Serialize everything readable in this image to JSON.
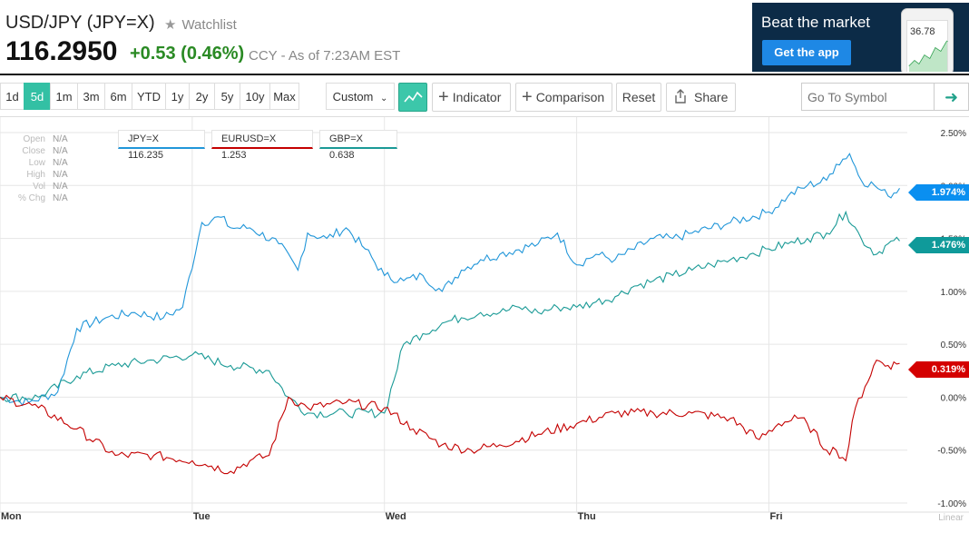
{
  "header": {
    "title": "USD/JPY (JPY=X)",
    "watchlist_label": "Watchlist",
    "price": "116.2950",
    "change": "+0.53 (0.46%)",
    "meta": "CCY - As of 7:23AM EST"
  },
  "ad": {
    "headline": "Beat the market",
    "button": "Get the app",
    "phone_value": "36.78"
  },
  "toolbar": {
    "ranges": [
      "1d",
      "5d",
      "1m",
      "3m",
      "6m",
      "YTD",
      "1y",
      "2y",
      "5y",
      "10y",
      "Max"
    ],
    "active_range": "5d",
    "custom_label": "Custom",
    "indicator_label": "Indicator",
    "comparison_label": "Comparison",
    "reset_label": "Reset",
    "share_label": "Share",
    "symbol_placeholder": "Go To Symbol"
  },
  "ohlc": [
    {
      "label": "Open",
      "value": "N/A"
    },
    {
      "label": "Close",
      "value": "N/A"
    },
    {
      "label": "Low",
      "value": "N/A"
    },
    {
      "label": "High",
      "value": "N/A"
    },
    {
      "label": "Vol",
      "value": "N/A"
    },
    {
      "label": "% Chg",
      "value": "N/A"
    }
  ],
  "legend": [
    {
      "label": "JPY=X 116.235",
      "color": "#2196d9"
    },
    {
      "label": "EURUSD=X 1.253",
      "color": "#c40000"
    },
    {
      "label": "GBP=X 0.638",
      "color": "#1a9a96"
    }
  ],
  "tags": [
    {
      "label": "1.974%",
      "color": "#0a8ff0"
    },
    {
      "label": "1.476%",
      "color": "#0f9a9a"
    },
    {
      "label": "0.319%",
      "color": "#d40000"
    }
  ],
  "chart_data": {
    "type": "line",
    "ylim": [
      -1.0,
      2.5
    ],
    "y_ticks": [
      "2.50%",
      "2.00%",
      "1.50%",
      "1.00%",
      "0.50%",
      "0.00%",
      "-0.50%",
      "-1.00%"
    ],
    "y_tick_values": [
      2.5,
      2.0,
      1.5,
      1.0,
      0.5,
      0.0,
      -0.5,
      -1.0
    ],
    "x_ticks": [
      "Mon",
      "Tue",
      "Wed",
      "Thu",
      "Fri"
    ],
    "x_tick_positions": [
      0,
      1,
      2,
      3,
      4
    ],
    "xlim": [
      0,
      4.72
    ],
    "scale_label": "Linear",
    "grid": true,
    "series": [
      {
        "name": "JPY=X",
        "color": "#2196d9",
        "x": [
          0,
          0.15,
          0.3,
          0.4,
          0.55,
          0.7,
          0.85,
          0.95,
          1.05,
          1.15,
          1.2,
          1.3,
          1.45,
          1.55,
          1.6,
          1.7,
          1.8,
          1.9,
          2.0,
          2.1,
          2.2,
          2.3,
          2.4,
          2.5,
          2.6,
          2.8,
          2.9,
          3.0,
          3.1,
          3.2,
          3.4,
          3.5,
          3.6,
          3.8,
          4.0,
          4.1,
          4.2,
          4.3,
          4.35,
          4.42,
          4.48,
          4.55,
          4.62,
          4.68
        ],
        "y": [
          0.0,
          -0.05,
          0.05,
          0.65,
          0.75,
          0.8,
          0.75,
          0.85,
          1.65,
          1.7,
          1.6,
          1.6,
          1.45,
          1.2,
          1.55,
          1.5,
          1.6,
          1.4,
          1.15,
          1.1,
          1.15,
          1.0,
          1.2,
          1.3,
          1.35,
          1.45,
          1.55,
          1.25,
          1.35,
          1.3,
          1.5,
          1.5,
          1.55,
          1.65,
          1.75,
          1.9,
          2.0,
          2.05,
          2.2,
          2.3,
          2.05,
          2.0,
          1.9,
          1.974
        ]
      },
      {
        "name": "GBP=X",
        "color": "#1a9a96",
        "x": [
          0,
          0.2,
          0.4,
          0.6,
          0.8,
          1.0,
          1.2,
          1.4,
          1.5,
          1.6,
          1.8,
          2.0,
          2.1,
          2.2,
          2.3,
          2.4,
          2.5,
          2.6,
          2.7,
          2.8,
          2.9,
          3.0,
          3.1,
          3.2,
          3.3,
          3.4,
          3.5,
          3.6,
          3.7,
          3.8,
          3.9,
          4.0,
          4.1,
          4.2,
          4.3,
          4.4,
          4.48,
          4.56,
          4.62,
          4.68
        ],
        "y": [
          0.0,
          0.0,
          0.2,
          0.3,
          0.35,
          0.4,
          0.3,
          0.25,
          0.0,
          -0.15,
          -0.15,
          -0.15,
          0.5,
          0.6,
          0.7,
          0.75,
          0.8,
          0.8,
          0.85,
          0.8,
          0.85,
          0.85,
          0.9,
          0.95,
          1.05,
          1.1,
          1.15,
          1.2,
          1.25,
          1.3,
          1.35,
          1.4,
          1.45,
          1.5,
          1.55,
          1.75,
          1.5,
          1.35,
          1.45,
          1.476
        ]
      },
      {
        "name": "EURUSD=X",
        "color": "#c40000",
        "x": [
          0,
          0.2,
          0.4,
          0.6,
          0.8,
          1.0,
          1.1,
          1.2,
          1.3,
          1.4,
          1.5,
          1.6,
          1.8,
          2.0,
          2.15,
          2.3,
          2.45,
          2.6,
          2.8,
          3.0,
          3.2,
          3.4,
          3.6,
          3.8,
          3.95,
          4.05,
          4.15,
          4.2,
          4.3,
          4.35,
          4.4,
          4.45,
          4.5,
          4.56,
          4.62,
          4.68
        ],
        "y": [
          0.0,
          -0.1,
          -0.3,
          -0.55,
          -0.55,
          -0.6,
          -0.65,
          -0.7,
          -0.6,
          -0.55,
          0.0,
          -0.1,
          -0.05,
          -0.1,
          -0.3,
          -0.45,
          -0.5,
          -0.45,
          -0.35,
          -0.25,
          -0.15,
          -0.15,
          -0.15,
          -0.2,
          -0.4,
          -0.25,
          -0.2,
          -0.25,
          -0.5,
          -0.5,
          -0.6,
          -0.1,
          0.1,
          0.35,
          0.3,
          0.319
        ]
      }
    ]
  }
}
